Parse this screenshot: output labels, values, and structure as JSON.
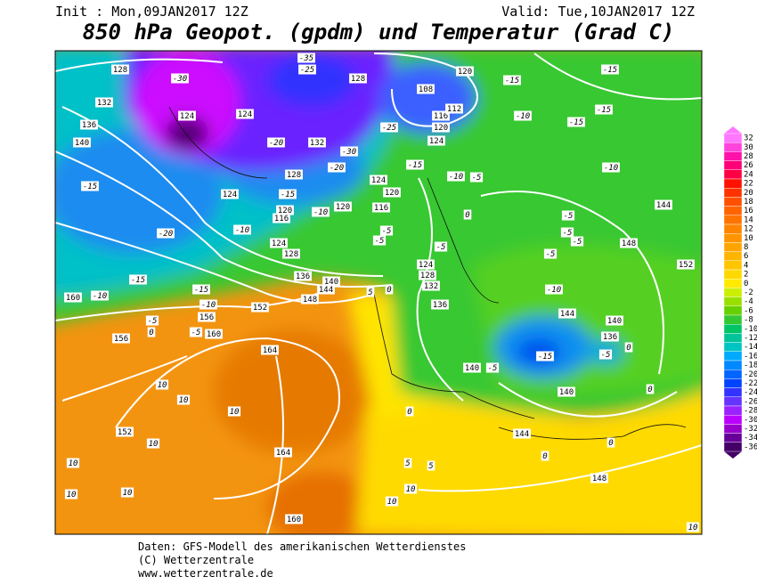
{
  "header": {
    "init": "Init : Mon,09JAN2017 12Z",
    "valid": "Valid: Tue,10JAN2017 12Z",
    "title": "850 hPa Geopot. (gpdm) und Temperatur (Grad C)"
  },
  "colorbar": {
    "levels": [
      32,
      30,
      28,
      26,
      24,
      22,
      20,
      18,
      16,
      14,
      12,
      10,
      8,
      6,
      4,
      2,
      0,
      -2,
      -4,
      -6,
      -8,
      -10,
      -12,
      -14,
      -16,
      -18,
      -20,
      -22,
      -24,
      -26,
      -28,
      -30,
      -32,
      -34,
      -36
    ],
    "colors": [
      "#ff77ff",
      "#ff44dd",
      "#ff11aa",
      "#ff0077",
      "#ff0044",
      "#ff1100",
      "#ff3300",
      "#ff5000",
      "#ff6400",
      "#ff7400",
      "#ff8400",
      "#ff9400",
      "#ffa400",
      "#ffb400",
      "#ffc600",
      "#ffd800",
      "#ffea00",
      "#ccee00",
      "#99e000",
      "#66d000",
      "#33c833",
      "#00c466",
      "#00c499",
      "#00c4c4",
      "#00aaff",
      "#0088ff",
      "#0066ff",
      "#0044ff",
      "#3333ff",
      "#6633ff",
      "#9922ff",
      "#bb00ff",
      "#9900cc",
      "#660099",
      "#440066"
    ]
  },
  "contour_labels": {
    "geopotential": [
      128,
      132,
      136,
      140,
      124,
      124,
      128,
      132,
      128,
      124,
      120,
      116,
      120,
      116,
      120,
      124,
      124,
      128,
      136,
      140,
      144,
      148,
      152,
      156,
      160,
      164,
      164,
      160,
      152,
      156,
      160,
      124,
      128,
      132,
      136,
      140,
      140,
      144,
      148,
      144,
      140,
      136,
      148,
      152,
      144,
      120,
      116,
      120,
      124,
      112,
      108
    ],
    "temperature": [
      -30,
      -25,
      -35,
      -15,
      -20,
      -15,
      -15,
      -10,
      -10,
      -5,
      0,
      -5,
      -10,
      -15,
      -10,
      -20,
      -20,
      -30,
      -25,
      -15,
      -10,
      -5,
      -5,
      -5,
      -5,
      0,
      -5,
      -5,
      -5,
      -5,
      -10,
      -15,
      -5,
      0,
      0,
      -5,
      0,
      0,
      0,
      -15,
      -15,
      -15,
      -15,
      -10,
      -10,
      10,
      10,
      10,
      10,
      10,
      10,
      10,
      10,
      10,
      5,
      5,
      5,
      0,
      10
    ]
  },
  "footer": {
    "lines": [
      "Daten: GFS-Modell des amerikanischen Wetterdienstes",
      "(C) Wetterzentrale",
      "www.wetterzentrale.de"
    ]
  }
}
